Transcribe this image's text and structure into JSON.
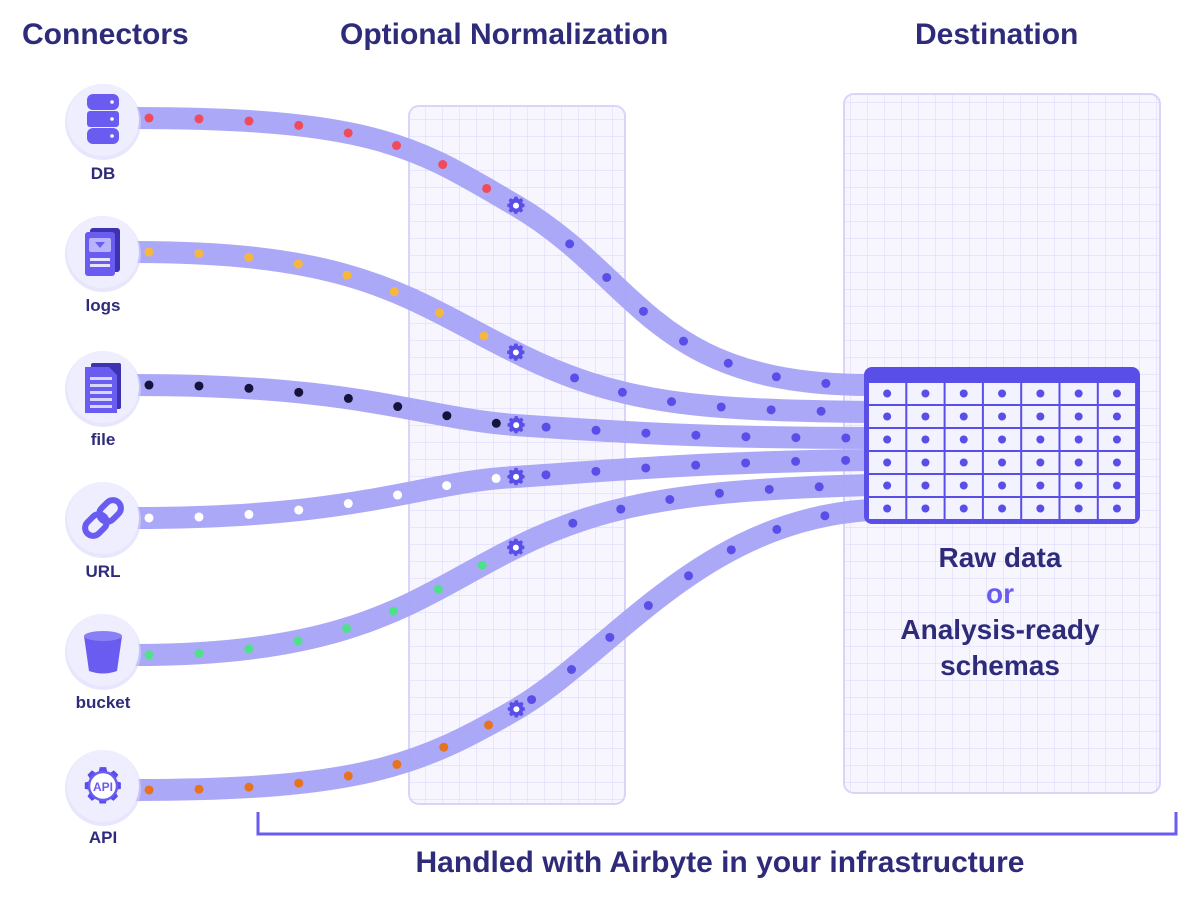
{
  "headings": {
    "connectors": "Connectors",
    "normalization": "Optional Normalization",
    "destination": "Destination"
  },
  "connectors": [
    {
      "label": "DB",
      "icon": "database-icon",
      "dot_color": "#ef4b5a"
    },
    {
      "label": "logs",
      "icon": "logs-icon",
      "dot_color": "#f5b83d"
    },
    {
      "label": "file",
      "icon": "file-icon",
      "dot_color": "#15123b"
    },
    {
      "label": "URL",
      "icon": "link-icon",
      "dot_color": "#ffffff"
    },
    {
      "label": "bucket",
      "icon": "bucket-icon",
      "dot_color": "#4fe08a"
    },
    {
      "label": "API",
      "icon": "api-gear-icon",
      "api_text": "API",
      "dot_color": "#e8731e"
    }
  ],
  "destination": {
    "line1": "Raw data",
    "or": "or",
    "line2": "Analysis-ready",
    "line3": "schemas"
  },
  "footer": "Handled with Airbyte in your infrastructure",
  "colors": {
    "heading": "#2e2b7a",
    "accent": "#6a5cf0",
    "stream": "#a8a3f8",
    "transformed_dot": "#5a4ee8",
    "grid_line": "#d7d5fa",
    "bracket": "#6a5cf0"
  }
}
